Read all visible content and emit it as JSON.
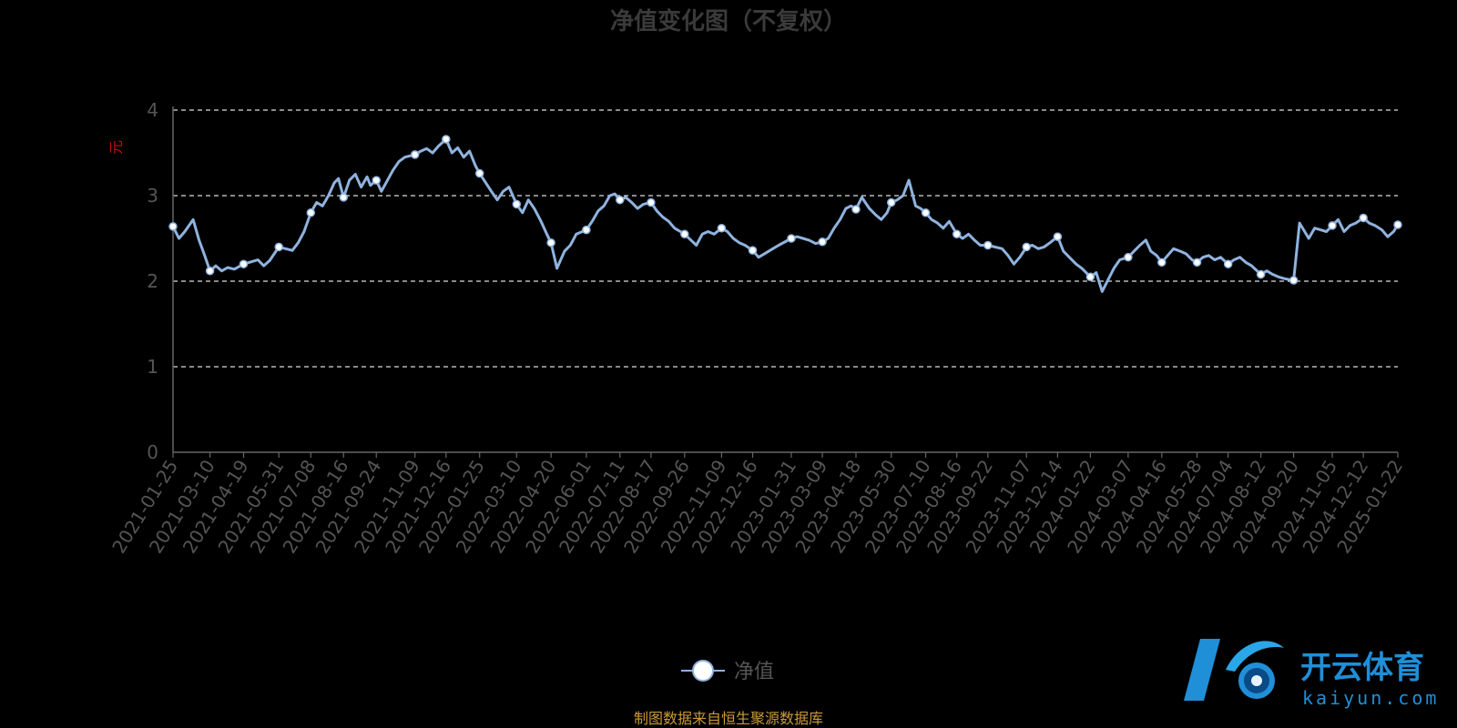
{
  "chart_data": {
    "type": "line",
    "title": "净值变化图（不复权）",
    "ylabel": "元",
    "ylim": [
      0,
      4
    ],
    "yticks": [
      0,
      1,
      2,
      3,
      4
    ],
    "grid": true,
    "legend_position": "bottom-center",
    "colors": {
      "line": "#8fb3df",
      "marker_fill": "#ffffff",
      "grid": "#dddddd",
      "axis": "#666666"
    },
    "x_ticks": [
      "2021-01-25",
      "2021-03-10",
      "2021-04-19",
      "2021-05-31",
      "2021-07-08",
      "2021-08-16",
      "2021-09-24",
      "2021-11-09",
      "2021-12-16",
      "2022-01-25",
      "2022-03-10",
      "2022-04-20",
      "2022-06-01",
      "2022-07-11",
      "2022-08-17",
      "2022-09-26",
      "2022-11-09",
      "2022-12-16",
      "2023-01-31",
      "2023-03-09",
      "2023-04-18",
      "2023-05-30",
      "2023-07-10",
      "2023-08-16",
      "2023-09-22",
      "2023-11-07",
      "2023-12-14",
      "2024-01-22",
      "2024-03-07",
      "2024-04-16",
      "2024-05-28",
      "2024-07-04",
      "2024-08-12",
      "2024-09-20",
      "2024-11-05",
      "2024-12-12",
      "2025-01-22"
    ],
    "series": [
      {
        "name": "净值",
        "points": [
          [
            "2021-01-25",
            2.64
          ],
          [
            "2021-02-01",
            2.5
          ],
          [
            "2021-02-08",
            2.58
          ],
          [
            "2021-02-18",
            2.72
          ],
          [
            "2021-02-25",
            2.48
          ],
          [
            "2021-03-03",
            2.32
          ],
          [
            "2021-03-10",
            2.12
          ],
          [
            "2021-03-17",
            2.18
          ],
          [
            "2021-03-24",
            2.12
          ],
          [
            "2021-03-31",
            2.16
          ],
          [
            "2021-04-08",
            2.14
          ],
          [
            "2021-04-19",
            2.2
          ],
          [
            "2021-04-26",
            2.22
          ],
          [
            "2021-05-06",
            2.25
          ],
          [
            "2021-05-13",
            2.18
          ],
          [
            "2021-05-20",
            2.24
          ],
          [
            "2021-05-31",
            2.4
          ],
          [
            "2021-06-08",
            2.38
          ],
          [
            "2021-06-16",
            2.36
          ],
          [
            "2021-06-23",
            2.45
          ],
          [
            "2021-06-30",
            2.58
          ],
          [
            "2021-07-08",
            2.8
          ],
          [
            "2021-07-15",
            2.92
          ],
          [
            "2021-07-22",
            2.88
          ],
          [
            "2021-07-29",
            3.0
          ],
          [
            "2021-08-05",
            3.15
          ],
          [
            "2021-08-10",
            3.2
          ],
          [
            "2021-08-16",
            2.98
          ],
          [
            "2021-08-23",
            3.18
          ],
          [
            "2021-08-30",
            3.25
          ],
          [
            "2021-09-06",
            3.1
          ],
          [
            "2021-09-13",
            3.22
          ],
          [
            "2021-09-17",
            3.12
          ],
          [
            "2021-09-24",
            3.18
          ],
          [
            "2021-09-30",
            3.05
          ],
          [
            "2021-10-14",
            3.3
          ],
          [
            "2021-10-21",
            3.4
          ],
          [
            "2021-10-28",
            3.45
          ],
          [
            "2021-11-09",
            3.48
          ],
          [
            "2021-11-16",
            3.52
          ],
          [
            "2021-11-23",
            3.55
          ],
          [
            "2021-11-30",
            3.5
          ],
          [
            "2021-12-07",
            3.58
          ],
          [
            "2021-12-16",
            3.66
          ],
          [
            "2021-12-23",
            3.5
          ],
          [
            "2021-12-30",
            3.56
          ],
          [
            "2022-01-06",
            3.45
          ],
          [
            "2022-01-13",
            3.52
          ],
          [
            "2022-01-20",
            3.35
          ],
          [
            "2022-01-25",
            3.26
          ],
          [
            "2022-02-08",
            3.05
          ],
          [
            "2022-02-15",
            2.95
          ],
          [
            "2022-02-22",
            3.05
          ],
          [
            "2022-03-01",
            3.1
          ],
          [
            "2022-03-10",
            2.9
          ],
          [
            "2022-03-17",
            2.8
          ],
          [
            "2022-03-24",
            2.95
          ],
          [
            "2022-03-31",
            2.85
          ],
          [
            "2022-04-08",
            2.7
          ],
          [
            "2022-04-15",
            2.55
          ],
          [
            "2022-04-20",
            2.45
          ],
          [
            "2022-04-27",
            2.15
          ],
          [
            "2022-05-06",
            2.35
          ],
          [
            "2022-05-13",
            2.42
          ],
          [
            "2022-05-20",
            2.55
          ],
          [
            "2022-06-01",
            2.6
          ],
          [
            "2022-06-08",
            2.7
          ],
          [
            "2022-06-15",
            2.82
          ],
          [
            "2022-06-22",
            2.88
          ],
          [
            "2022-06-29",
            3.0
          ],
          [
            "2022-07-05",
            3.02
          ],
          [
            "2022-07-11",
            2.95
          ],
          [
            "2022-07-18",
            2.98
          ],
          [
            "2022-07-25",
            2.92
          ],
          [
            "2022-08-01",
            2.85
          ],
          [
            "2022-08-08",
            2.9
          ],
          [
            "2022-08-17",
            2.92
          ],
          [
            "2022-08-24",
            2.82
          ],
          [
            "2022-08-31",
            2.75
          ],
          [
            "2022-09-07",
            2.7
          ],
          [
            "2022-09-14",
            2.62
          ],
          [
            "2022-09-21",
            2.58
          ],
          [
            "2022-09-26",
            2.55
          ],
          [
            "2022-10-10",
            2.42
          ],
          [
            "2022-10-17",
            2.55
          ],
          [
            "2022-10-24",
            2.58
          ],
          [
            "2022-10-31",
            2.55
          ],
          [
            "2022-11-09",
            2.62
          ],
          [
            "2022-11-16",
            2.58
          ],
          [
            "2022-11-23",
            2.5
          ],
          [
            "2022-11-30",
            2.45
          ],
          [
            "2022-12-07",
            2.42
          ],
          [
            "2022-12-16",
            2.36
          ],
          [
            "2022-12-23",
            2.28
          ],
          [
            "2022-12-30",
            2.32
          ],
          [
            "2023-01-09",
            2.38
          ],
          [
            "2023-01-16",
            2.42
          ],
          [
            "2023-01-31",
            2.5
          ],
          [
            "2023-02-07",
            2.52
          ],
          [
            "2023-02-14",
            2.5
          ],
          [
            "2023-02-21",
            2.48
          ],
          [
            "2023-03-01",
            2.44
          ],
          [
            "2023-03-09",
            2.46
          ],
          [
            "2023-03-16",
            2.5
          ],
          [
            "2023-03-23",
            2.62
          ],
          [
            "2023-03-30",
            2.72
          ],
          [
            "2023-04-06",
            2.85
          ],
          [
            "2023-04-12",
            2.88
          ],
          [
            "2023-04-18",
            2.84
          ],
          [
            "2023-04-25",
            2.98
          ],
          [
            "2023-05-04",
            2.85
          ],
          [
            "2023-05-11",
            2.78
          ],
          [
            "2023-05-18",
            2.72
          ],
          [
            "2023-05-25",
            2.8
          ],
          [
            "2023-05-30",
            2.92
          ],
          [
            "2023-06-06",
            2.95
          ],
          [
            "2023-06-13",
            3.0
          ],
          [
            "2023-06-20",
            3.18
          ],
          [
            "2023-06-28",
            2.88
          ],
          [
            "2023-07-04",
            2.85
          ],
          [
            "2023-07-10",
            2.8
          ],
          [
            "2023-07-17",
            2.72
          ],
          [
            "2023-07-24",
            2.68
          ],
          [
            "2023-07-31",
            2.62
          ],
          [
            "2023-08-07",
            2.7
          ],
          [
            "2023-08-16",
            2.55
          ],
          [
            "2023-08-23",
            2.5
          ],
          [
            "2023-08-30",
            2.55
          ],
          [
            "2023-09-06",
            2.48
          ],
          [
            "2023-09-13",
            2.42
          ],
          [
            "2023-09-22",
            2.42
          ],
          [
            "2023-10-09",
            2.38
          ],
          [
            "2023-10-16",
            2.3
          ],
          [
            "2023-10-23",
            2.2
          ],
          [
            "2023-10-30",
            2.28
          ],
          [
            "2023-11-07",
            2.4
          ],
          [
            "2023-11-14",
            2.42
          ],
          [
            "2023-11-21",
            2.38
          ],
          [
            "2023-11-28",
            2.4
          ],
          [
            "2023-12-05",
            2.45
          ],
          [
            "2023-12-14",
            2.52
          ],
          [
            "2023-12-21",
            2.35
          ],
          [
            "2023-12-28",
            2.28
          ],
          [
            "2024-01-05",
            2.2
          ],
          [
            "2024-01-12",
            2.15
          ],
          [
            "2024-01-22",
            2.05
          ],
          [
            "2024-01-29",
            2.1
          ],
          [
            "2024-02-05",
            1.88
          ],
          [
            "2024-02-19",
            2.15
          ],
          [
            "2024-02-26",
            2.25
          ],
          [
            "2024-03-07",
            2.28
          ],
          [
            "2024-03-14",
            2.35
          ],
          [
            "2024-03-21",
            2.42
          ],
          [
            "2024-03-28",
            2.48
          ],
          [
            "2024-04-03",
            2.35
          ],
          [
            "2024-04-10",
            2.3
          ],
          [
            "2024-04-16",
            2.22
          ],
          [
            "2024-04-23",
            2.3
          ],
          [
            "2024-04-30",
            2.38
          ],
          [
            "2024-05-08",
            2.35
          ],
          [
            "2024-05-15",
            2.32
          ],
          [
            "2024-05-22",
            2.25
          ],
          [
            "2024-05-28",
            2.22
          ],
          [
            "2024-06-04",
            2.28
          ],
          [
            "2024-06-11",
            2.3
          ],
          [
            "2024-06-18",
            2.25
          ],
          [
            "2024-06-25",
            2.28
          ],
          [
            "2024-07-04",
            2.2
          ],
          [
            "2024-07-11",
            2.25
          ],
          [
            "2024-07-18",
            2.28
          ],
          [
            "2024-07-25",
            2.22
          ],
          [
            "2024-08-01",
            2.18
          ],
          [
            "2024-08-12",
            2.08
          ],
          [
            "2024-08-19",
            2.12
          ],
          [
            "2024-08-26",
            2.08
          ],
          [
            "2024-09-02",
            2.05
          ],
          [
            "2024-09-09",
            2.03
          ],
          [
            "2024-09-20",
            2.01
          ],
          [
            "2024-09-27",
            2.68
          ],
          [
            "2024-10-08",
            2.5
          ],
          [
            "2024-10-15",
            2.62
          ],
          [
            "2024-10-22",
            2.6
          ],
          [
            "2024-10-29",
            2.58
          ],
          [
            "2024-11-05",
            2.65
          ],
          [
            "2024-11-12",
            2.72
          ],
          [
            "2024-11-19",
            2.58
          ],
          [
            "2024-11-26",
            2.65
          ],
          [
            "2024-12-03",
            2.68
          ],
          [
            "2024-12-12",
            2.74
          ],
          [
            "2024-12-19",
            2.68
          ],
          [
            "2024-12-26",
            2.65
          ],
          [
            "2025-01-03",
            2.6
          ],
          [
            "2025-01-10",
            2.52
          ],
          [
            "2025-01-17",
            2.58
          ],
          [
            "2025-01-22",
            2.66
          ]
        ]
      }
    ],
    "marked_points": [
      "2021-01-25",
      "2021-03-10",
      "2021-04-19",
      "2021-05-31",
      "2021-07-08",
      "2021-08-16",
      "2021-09-24",
      "2021-11-09",
      "2021-12-16",
      "2022-01-25",
      "2022-03-10",
      "2022-04-20",
      "2022-06-01",
      "2022-07-11",
      "2022-08-17",
      "2022-09-26",
      "2022-11-09",
      "2022-12-16",
      "2023-01-31",
      "2023-03-09",
      "2023-04-18",
      "2023-05-30",
      "2023-07-10",
      "2023-08-16",
      "2023-09-22",
      "2023-11-07",
      "2023-12-14",
      "2024-01-22",
      "2024-03-07",
      "2024-04-16",
      "2024-05-28",
      "2024-07-04",
      "2024-08-12",
      "2024-09-20",
      "2024-11-05",
      "2024-12-12",
      "2025-01-22"
    ]
  },
  "legend": {
    "label": "净值"
  },
  "source_note": "制图数据来自恒生聚源数据库",
  "watermark": {
    "cn": "开云体育",
    "en": "kaiyun.com"
  }
}
